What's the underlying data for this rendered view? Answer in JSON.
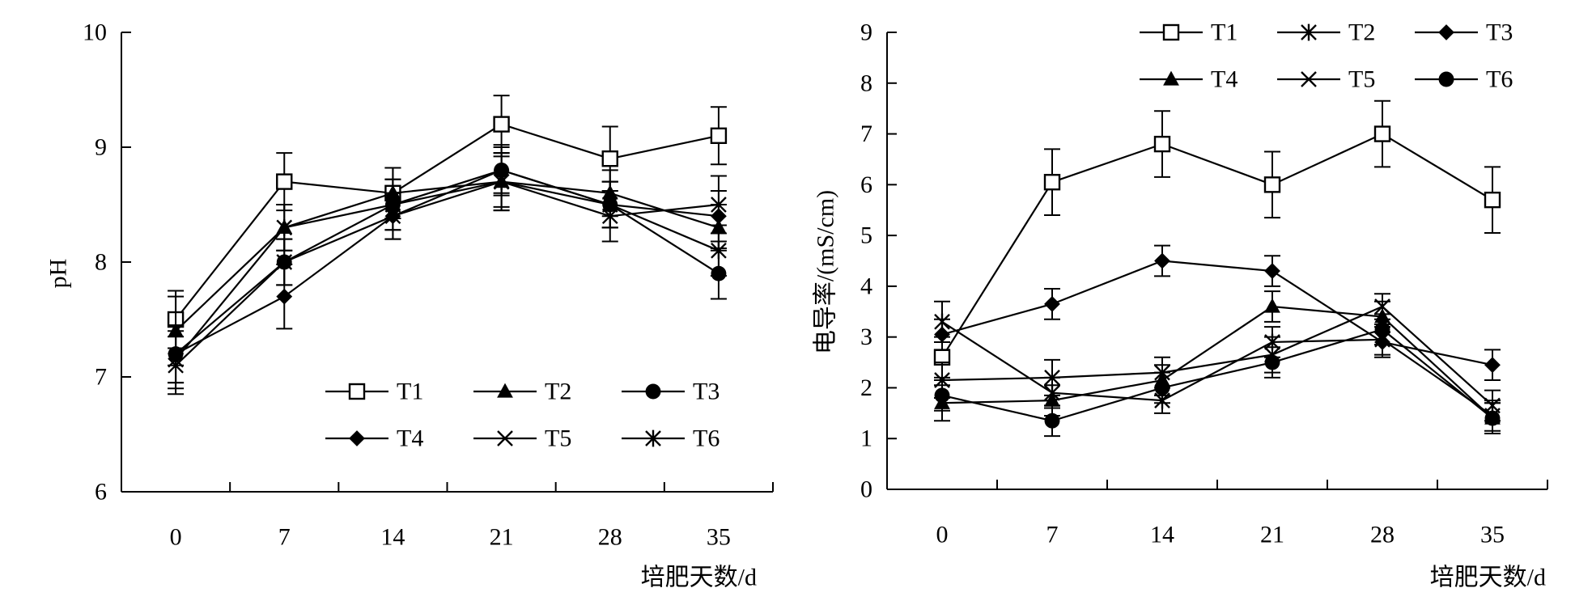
{
  "chart_data": [
    {
      "type": "line",
      "title": "",
      "xlabel": "培肥天数/d",
      "ylabel": "pH",
      "categories": [
        "0",
        "7",
        "14",
        "21",
        "28",
        "35"
      ],
      "ylim": [
        6,
        10
      ],
      "yticks": [
        "6",
        "7",
        "8",
        "9",
        "10"
      ],
      "grid": false,
      "legend_position": "bottom-right",
      "series": [
        {
          "name": "T1",
          "marker": "square-open",
          "values": [
            7.5,
            8.7,
            8.6,
            9.2,
            8.9,
            9.1
          ],
          "errors": [
            0.25,
            0.25,
            0.22,
            0.25,
            0.28,
            0.25
          ]
        },
        {
          "name": "T2",
          "marker": "triangle",
          "values": [
            7.4,
            8.3,
            8.6,
            8.7,
            8.6,
            8.3
          ],
          "errors": [
            0.3,
            0.2,
            0.22,
            0.25,
            0.2,
            0.2
          ]
        },
        {
          "name": "T3",
          "marker": "circle",
          "values": [
            7.2,
            8.0,
            8.5,
            8.8,
            8.5,
            7.9
          ],
          "errors": [
            0.25,
            0.2,
            0.22,
            0.2,
            0.2,
            0.22
          ]
        },
        {
          "name": "T4",
          "marker": "diamond",
          "values": [
            7.2,
            7.7,
            8.4,
            8.8,
            8.5,
            8.4
          ],
          "errors": [
            0.25,
            0.28,
            0.2,
            0.22,
            0.2,
            0.22
          ]
        },
        {
          "name": "T5",
          "marker": "x",
          "values": [
            7.1,
            8.0,
            8.4,
            8.7,
            8.4,
            8.5
          ],
          "errors": [
            0.25,
            0.2,
            0.2,
            0.25,
            0.22,
            0.25
          ]
        },
        {
          "name": "T6",
          "marker": "asterisk",
          "values": [
            7.15,
            8.3,
            8.5,
            8.7,
            8.5,
            8.1
          ],
          "errors": [
            0.25,
            0.2,
            0.22,
            0.22,
            0.2,
            0.22
          ]
        }
      ]
    },
    {
      "type": "line",
      "title": "",
      "xlabel": "培肥天数/d",
      "ylabel": "电导率/(mS/cm)",
      "categories": [
        "0",
        "7",
        "14",
        "21",
        "28",
        "35"
      ],
      "ylim": [
        0,
        9
      ],
      "yticks": [
        "0",
        "1",
        "2",
        "3",
        "4",
        "5",
        "6",
        "7",
        "8",
        "9"
      ],
      "grid": false,
      "legend_position": "top-right",
      "series": [
        {
          "name": "T1",
          "marker": "square-open",
          "values": [
            2.6,
            6.05,
            6.8,
            6.0,
            7.0,
            5.7
          ],
          "errors": [
            0.4,
            0.65,
            0.65,
            0.65,
            0.65,
            0.65
          ]
        },
        {
          "name": "T2",
          "marker": "asterisk",
          "values": [
            3.3,
            1.9,
            1.75,
            2.9,
            2.95,
            1.45
          ],
          "errors": [
            0.4,
            0.3,
            0.25,
            0.3,
            0.3,
            0.3
          ]
        },
        {
          "name": "T3",
          "marker": "diamond",
          "values": [
            3.05,
            3.65,
            4.5,
            4.3,
            2.9,
            2.45
          ],
          "errors": [
            0.3,
            0.3,
            0.3,
            0.3,
            0.3,
            0.3
          ]
        },
        {
          "name": "T4",
          "marker": "triangle",
          "values": [
            1.7,
            1.75,
            2.15,
            3.6,
            3.4,
            1.4
          ],
          "errors": [
            0.35,
            0.3,
            0.3,
            0.3,
            0.3,
            0.3
          ]
        },
        {
          "name": "T5",
          "marker": "x",
          "values": [
            2.15,
            2.2,
            2.3,
            2.65,
            3.6,
            1.65
          ],
          "errors": [
            0.35,
            0.35,
            0.3,
            0.35,
            0.25,
            0.3
          ]
        },
        {
          "name": "T6",
          "marker": "circle",
          "values": [
            1.85,
            1.35,
            2.0,
            2.5,
            3.15,
            1.4
          ],
          "errors": [
            0.3,
            0.3,
            0.3,
            0.3,
            0.3,
            0.3
          ]
        }
      ]
    }
  ]
}
